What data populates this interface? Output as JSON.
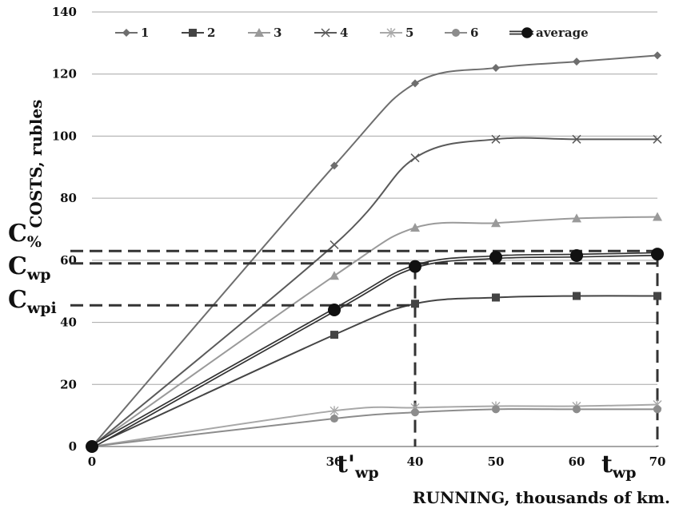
{
  "chart_data": {
    "type": "line",
    "title": "",
    "xlabel": "RUNNING, thousands of km.",
    "ylabel": "COSTS, rubles",
    "x": [
      0,
      30,
      40,
      50,
      60,
      70
    ],
    "xlim": [
      0,
      70
    ],
    "ylim": [
      0,
      140
    ],
    "yticks": [
      0,
      20,
      40,
      60,
      80,
      100,
      120,
      140
    ],
    "xtick_labels": [
      "0",
      "30",
      "40",
      "50",
      "60",
      "70"
    ],
    "grid": "horizontal",
    "legend_position": "top",
    "series": [
      {
        "name": "1",
        "marker": "diamond",
        "color": "#6e6e6e",
        "values": [
          0,
          90.5,
          117,
          122,
          124,
          126
        ]
      },
      {
        "name": "2",
        "marker": "square",
        "color": "#444444",
        "values": [
          0,
          36,
          46,
          48,
          48.5,
          48.5
        ]
      },
      {
        "name": "3",
        "marker": "triangle",
        "color": "#9a9a9a",
        "values": [
          0,
          55,
          70.5,
          72,
          73.5,
          74
        ]
      },
      {
        "name": "4",
        "marker": "x",
        "color": "#5a5a5a",
        "values": [
          0,
          65,
          93,
          99,
          99,
          99
        ]
      },
      {
        "name": "5",
        "marker": "star",
        "color": "#a8a8a8",
        "values": [
          0,
          11.5,
          12.5,
          13,
          13,
          13.5
        ]
      },
      {
        "name": "6",
        "marker": "circle",
        "color": "#8c8c8c",
        "values": [
          0,
          9,
          11,
          12,
          12,
          12
        ]
      },
      {
        "name": "average",
        "marker": "big-circle",
        "color": "#111111",
        "values": [
          0,
          44,
          58,
          61,
          61.5,
          62
        ]
      }
    ],
    "annotations": {
      "c_pct": {
        "base": "C",
        "sub": "%",
        "y": 63
      },
      "c_wp": {
        "base": "C",
        "sub": "wp",
        "y": 59
      },
      "c_wpi": {
        "base": "C",
        "sub": "wpi",
        "y": 45.5
      },
      "t_wp_prime": {
        "base": "t'",
        "sub": "wp",
        "x": 40
      },
      "t_wp": {
        "base": "t",
        "sub": "wp",
        "x": 70
      }
    }
  }
}
